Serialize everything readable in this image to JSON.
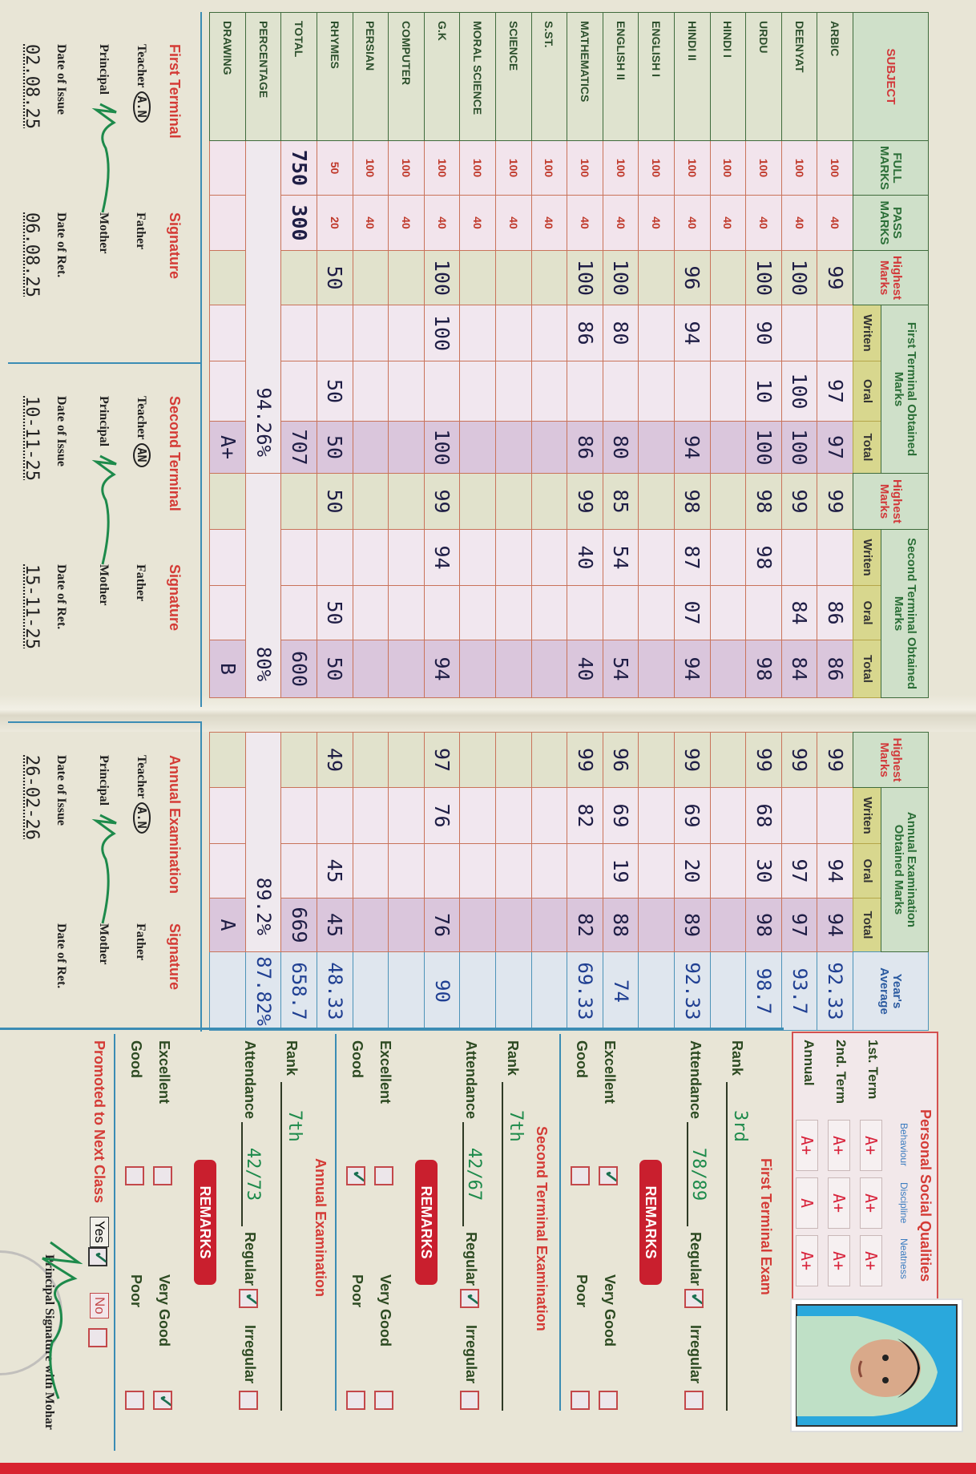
{
  "table": {
    "headers": {
      "subject": "SUBJECT",
      "full_marks": "FULL MARKS",
      "pass_marks": "PASS MARKS",
      "highest": "Highest Marks",
      "first_terminal": "First Terminal Obtained Marks",
      "second_terminal": "Second Terminal Obtained Marks",
      "annual": "Annual Examination Obtained Marks",
      "written": "Writen",
      "oral": "Oral",
      "total": "Total",
      "years_average": "Year's Average"
    },
    "rows": [
      {
        "name": "ARBIC",
        "full": "100",
        "pass": "40",
        "t1": [
          "99",
          "",
          "97",
          "97"
        ],
        "t2": [
          "99",
          "",
          "86",
          "86"
        ],
        "an": [
          "99",
          "",
          "94",
          "94"
        ],
        "avg": "92.33"
      },
      {
        "name": "DEENYAT",
        "full": "100",
        "pass": "40",
        "t1": [
          "100",
          "",
          "100",
          "100"
        ],
        "t2": [
          "99",
          "",
          "84",
          "84"
        ],
        "an": [
          "99",
          "",
          "97",
          "97"
        ],
        "avg": "93.7"
      },
      {
        "name": "URDU",
        "full": "100",
        "pass": "40",
        "t1": [
          "100",
          "90",
          "10",
          "100"
        ],
        "t2": [
          "98",
          "98",
          "",
          "98"
        ],
        "an": [
          "99",
          "68",
          "30",
          "98"
        ],
        "avg": "98.7"
      },
      {
        "name": "HINDI I",
        "full": "100",
        "pass": "40",
        "t1": [
          "",
          "",
          "",
          ""
        ],
        "t2": [
          "",
          "",
          "",
          ""
        ],
        "an": [
          "",
          "",
          "",
          ""
        ],
        "avg": ""
      },
      {
        "name": "HINDI II",
        "full": "100",
        "pass": "40",
        "t1": [
          "96",
          "94",
          "",
          "94"
        ],
        "t2": [
          "98",
          "87",
          "07",
          "94"
        ],
        "an": [
          "99",
          "69",
          "20",
          "89"
        ],
        "avg": "92.33"
      },
      {
        "name": "ENGLISH I",
        "full": "100",
        "pass": "40",
        "t1": [
          "",
          "",
          "",
          ""
        ],
        "t2": [
          "",
          "",
          "",
          ""
        ],
        "an": [
          "",
          "",
          "",
          ""
        ],
        "avg": ""
      },
      {
        "name": "ENGLISH II",
        "full": "100",
        "pass": "40",
        "t1": [
          "100",
          "80",
          "",
          "80"
        ],
        "t2": [
          "85",
          "54",
          "",
          "54"
        ],
        "an": [
          "96",
          "69",
          "19",
          "88"
        ],
        "avg": "74"
      },
      {
        "name": "MATHEMATICS",
        "full": "100",
        "pass": "40",
        "t1": [
          "100",
          "86",
          "",
          "86"
        ],
        "t2": [
          "99",
          "40",
          "",
          "40"
        ],
        "an": [
          "99",
          "82",
          "",
          "82"
        ],
        "avg": "69.33"
      },
      {
        "name": "S.ST.",
        "full": "100",
        "pass": "40",
        "t1": [
          "",
          "",
          "",
          ""
        ],
        "t2": [
          "",
          "",
          "",
          ""
        ],
        "an": [
          "",
          "",
          "",
          ""
        ],
        "avg": ""
      },
      {
        "name": "SCIENCE",
        "full": "100",
        "pass": "40",
        "t1": [
          "",
          "",
          "",
          ""
        ],
        "t2": [
          "",
          "",
          "",
          ""
        ],
        "an": [
          "",
          "",
          "",
          ""
        ],
        "avg": ""
      },
      {
        "name": "MORAL SCIENCE",
        "full": "100",
        "pass": "40",
        "t1": [
          "",
          "",
          "",
          ""
        ],
        "t2": [
          "",
          "",
          "",
          ""
        ],
        "an": [
          "",
          "",
          "",
          ""
        ],
        "avg": ""
      },
      {
        "name": "G.K",
        "full": "100",
        "pass": "40",
        "t1": [
          "100",
          "100",
          "",
          "100"
        ],
        "t2": [
          "99",
          "94",
          "",
          "94"
        ],
        "an": [
          "97",
          "76",
          "",
          "76"
        ],
        "avg": "90"
      },
      {
        "name": "COMPUTER",
        "full": "100",
        "pass": "40",
        "t1": [
          "",
          "",
          "",
          ""
        ],
        "t2": [
          "",
          "",
          "",
          ""
        ],
        "an": [
          "",
          "",
          "",
          ""
        ],
        "avg": ""
      },
      {
        "name": "PERSIAN",
        "full": "100",
        "pass": "40",
        "t1": [
          "",
          "",
          "",
          ""
        ],
        "t2": [
          "",
          "",
          "",
          ""
        ],
        "an": [
          "",
          "",
          "",
          ""
        ],
        "avg": ""
      },
      {
        "name": "RHYMES",
        "full": "50",
        "pass": "20",
        "t1": [
          "50",
          "",
          "50",
          "50"
        ],
        "t2": [
          "50",
          "",
          "50",
          "50"
        ],
        "an": [
          "49",
          "",
          "45",
          "45"
        ],
        "avg": "48.33"
      },
      {
        "name": "TOTAL",
        "full": "750",
        "pass": "300",
        "t1": [
          "",
          "",
          "",
          "707"
        ],
        "t2": [
          "",
          "",
          "",
          "600"
        ],
        "an": [
          "",
          "",
          "",
          "669"
        ],
        "avg": "658.7",
        "handwritten_marks": true
      },
      {
        "name": "PERCENTAGE",
        "percentage": true,
        "t1": "94.26%",
        "t2": "80%",
        "an": "89.2%",
        "avg": "87.82%"
      },
      {
        "name": "DRAWING",
        "full": "",
        "pass": "",
        "t1": [
          "",
          "",
          "",
          "A+"
        ],
        "t2": [
          "",
          "",
          "",
          "B"
        ],
        "an": [
          "",
          "",
          "",
          "A"
        ],
        "avg": ""
      }
    ]
  },
  "signatures": [
    {
      "title": "First Terminal",
      "signature_label": "Signature",
      "teacher_label": "Teacher",
      "teacher_initials": "A.N",
      "father_label": "Father",
      "principal_label": "Principal",
      "mother_label": "Mother",
      "issue_label": "Date of Issue",
      "issue_date": "02.08.25",
      "ret_label": "Date of Ret.",
      "ret_date": "06.08.25"
    },
    {
      "title": "Second Terminal",
      "signature_label": "Signature",
      "teacher_label": "Teacher",
      "teacher_initials": "AN",
      "father_label": "Father",
      "principal_label": "Principal",
      "mother_label": "Mother",
      "issue_label": "Date of Issue",
      "issue_date": "10-11-25",
      "ret_label": "Date of Ret.",
      "ret_date": "15-11-25"
    },
    {
      "title": "Annual Examination",
      "signature_label": "Signature",
      "teacher_label": "Teacher",
      "teacher_initials": "A.N",
      "father_label": "Father",
      "principal_label": "Principal",
      "mother_label": "Mother",
      "issue_label": "Date of Issue",
      "issue_date": "26-02-26",
      "ret_label": "Date of Ret.",
      "ret_date": ""
    }
  ],
  "personal_social_qualities": {
    "title": "Personal Social Qualities",
    "columns": [
      "Behaviour",
      "Discipline",
      "Neatness"
    ],
    "rows": [
      {
        "term": "1st. Term",
        "grades": [
          "A+",
          "A+",
          "A+"
        ]
      },
      {
        "term": "2nd. Term",
        "grades": [
          "A+",
          "A+",
          "A+"
        ]
      },
      {
        "term": "Annual",
        "grades": [
          "A+",
          "A",
          "A+"
        ]
      }
    ]
  },
  "exams": [
    {
      "title": "First Terminal Exam",
      "rank_label": "Rank",
      "rank": "3rd",
      "attendance_label": "Attendance",
      "attendance": "78/89",
      "regular_label": "Regular",
      "regular": true,
      "irregular_label": "Irregular",
      "irregular": false,
      "remarks_label": "REMARKS",
      "remarks": {
        "Excellent": true,
        "Very Good": false,
        "Good": false,
        "Poor": false
      }
    },
    {
      "title": "Second Terminal Examination",
      "rank_label": "Rank",
      "rank": "7th",
      "attendance_label": "Attendance",
      "attendance": "42/67",
      "regular_label": "Regular",
      "regular": true,
      "irregular_label": "Irregular",
      "irregular": false,
      "remarks_label": "REMARKS",
      "remarks": {
        "Excellent": false,
        "Very Good": false,
        "Good": true,
        "Poor": false
      }
    },
    {
      "title": "Annual Examination",
      "rank_label": "Rank",
      "rank": "7th",
      "attendance_label": "Attendance",
      "attendance": "42/73",
      "regular_label": "Regular",
      "regular": true,
      "irregular_label": "Irregular",
      "irregular": false,
      "remarks_label": "REMARKS",
      "remarks": {
        "Excellent": false,
        "Very Good": true,
        "Good": false,
        "Poor": false
      }
    }
  ],
  "remark_labels": [
    "Excellent",
    "Very Good",
    "Good",
    "Poor"
  ],
  "promotion": {
    "label": "Promoted to Next Class",
    "yes_label": "Yes",
    "yes": true,
    "no_label": "No",
    "no": false,
    "principal_label": "Principal Signature with Mohar"
  },
  "colors": {
    "accent_red": "#d43b36",
    "header_green": "#cfe0c9",
    "ink_green": "#1d8a4b",
    "ink_blue": "#1f3f92"
  }
}
